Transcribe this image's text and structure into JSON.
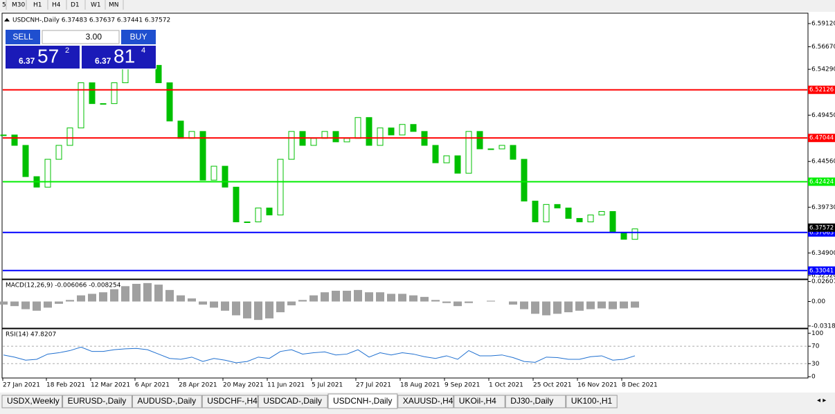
{
  "toolbar": {
    "timeframes": [
      "5",
      "M30",
      "H1",
      "H4",
      "D1",
      "W1",
      "MN"
    ]
  },
  "trade_panel": {
    "sell": "SELL",
    "buy": "BUY",
    "lot": "3.00",
    "bid_big": "6.37",
    "bid_digits": "57",
    "bid_frac": "2",
    "ask_big": "6.37",
    "ask_digits": "81",
    "ask_frac": "4"
  },
  "chart_data": {
    "type": "candlestick",
    "title": "USDCNH-,Daily  6.37483 6.37637 6.37441 6.37572",
    "close": [
      6.4736,
      6.4626,
      6.4296,
      6.4185,
      6.4479,
      6.4626,
      6.481,
      6.5287,
      6.5067,
      6.5067,
      6.5287,
      6.5434,
      6.5508,
      6.5471,
      6.5287,
      6.4883,
      6.47,
      6.4773,
      6.4259,
      6.4406,
      6.4185,
      6.3818,
      6.3818,
      6.3965,
      6.3891,
      6.4479,
      6.4773,
      6.4626,
      6.47,
      6.4773,
      6.4663,
      6.47,
      6.492,
      6.4626,
      6.481,
      6.4736,
      6.4847,
      6.4773,
      6.4626,
      6.4442,
      6.4516,
      6.4332,
      6.4773,
      6.4589,
      6.4589,
      6.4626,
      6.4479,
      6.4038,
      6.3818,
      6.4002,
      6.3965,
      6.3855,
      6.3818,
      6.3891,
      6.3928,
      6.3708,
      6.3634,
      6.3744
    ],
    "color": "#00c000",
    "ylim": [
      6.3215,
      6.6022
    ],
    "yticks": [
      {
        "value": 6.5912,
        "label": "6.59120"
      },
      {
        "value": 6.5667,
        "label": "6.56670"
      },
      {
        "value": 6.5429,
        "label": "6.54290"
      },
      {
        "value": 6.4945,
        "label": "6.49450"
      },
      {
        "value": 6.4456,
        "label": "6.44560"
      },
      {
        "value": 6.3973,
        "label": "6.39730"
      },
      {
        "value": 6.349,
        "label": "6.34900"
      },
      {
        "value": 6.3252,
        "label": "6.32520"
      }
    ],
    "levels": [
      {
        "value": 6.52126,
        "color": "#ff0000"
      },
      {
        "value": 6.47044,
        "color": "#ff0000"
      },
      {
        "value": 6.42424,
        "color": "#00ee00"
      },
      {
        "value": 6.37063,
        "color": "#0000ff"
      },
      {
        "value": 6.33041,
        "color": "#0000ff"
      }
    ],
    "current_price": 6.37572
  },
  "macd": {
    "title": "MACD(12,26,9) -0.006066 -0.008254",
    "color": "#a0a0a0",
    "ylim": [
      -0.0347,
      0.0284
    ],
    "yticks": [
      0.02607,
      {
        "value": 0,
        "label": "0.00"
      },
      -0.03187
    ],
    "values": [
      -0.004,
      -0.006,
      -0.01,
      -0.012,
      -0.008,
      -0.003,
      0.002,
      0.008,
      0.01,
      0.012,
      0.016,
      0.02,
      0.023,
      0.024,
      0.022,
      0.015,
      0.008,
      0.004,
      -0.004,
      -0.008,
      -0.012,
      -0.018,
      -0.022,
      -0.024,
      -0.022,
      -0.014,
      -0.005,
      0.002,
      0.008,
      0.012,
      0.014,
      0.014,
      0.015,
      0.012,
      0.012,
      0.01,
      0.01,
      0.008,
      0.006,
      0.002,
      -0.002,
      -0.006,
      -0.002,
      0,
      0.001,
      0,
      -0.004,
      -0.01,
      -0.016,
      -0.018,
      -0.016,
      -0.014,
      -0.012,
      -0.01,
      -0.009,
      -0.01,
      -0.009,
      -0.008
    ]
  },
  "rsi": {
    "title": "RSI(14) 47.8207",
    "color": "#1e6fd0",
    "ylim": [
      -3,
      110
    ],
    "yticks": [
      100,
      70,
      30,
      0
    ],
    "values": [
      50,
      45,
      38,
      40,
      52,
      55,
      60,
      68,
      58,
      58,
      62,
      64,
      65,
      62,
      52,
      42,
      40,
      45,
      35,
      42,
      38,
      32,
      35,
      45,
      42,
      58,
      62,
      52,
      55,
      57,
      50,
      52,
      62,
      45,
      55,
      50,
      55,
      52,
      46,
      42,
      48,
      40,
      60,
      48,
      48,
      50,
      44,
      35,
      33,
      45,
      44,
      40,
      40,
      46,
      48,
      38,
      40,
      48
    ]
  },
  "dates": [
    "27 Jan 2021",
    "18 Feb 2021",
    "12 Mar 2021",
    "6 Apr 2021",
    "28 Apr 2021",
    "20 May 2021",
    "11 Jun 2021",
    "5 Jul 2021",
    "27 Jul 2021",
    "18 Aug 2021",
    "9 Sep 2021",
    "1 Oct 2021",
    "25 Oct 2021",
    "16 Nov 2021",
    "8 Dec 2021"
  ],
  "tabs": [
    "USDX,Weekly",
    "EURUSD-,Daily",
    "AUDUSD-,Daily",
    "USDCHF-,H4",
    "USDCAD-,Daily",
    "USDCNH-,Daily",
    "XAUUSD-,H4",
    "UKOil-,H4",
    "DJ30-,Daily",
    "UK100-,H1"
  ],
  "active_tab": 5
}
